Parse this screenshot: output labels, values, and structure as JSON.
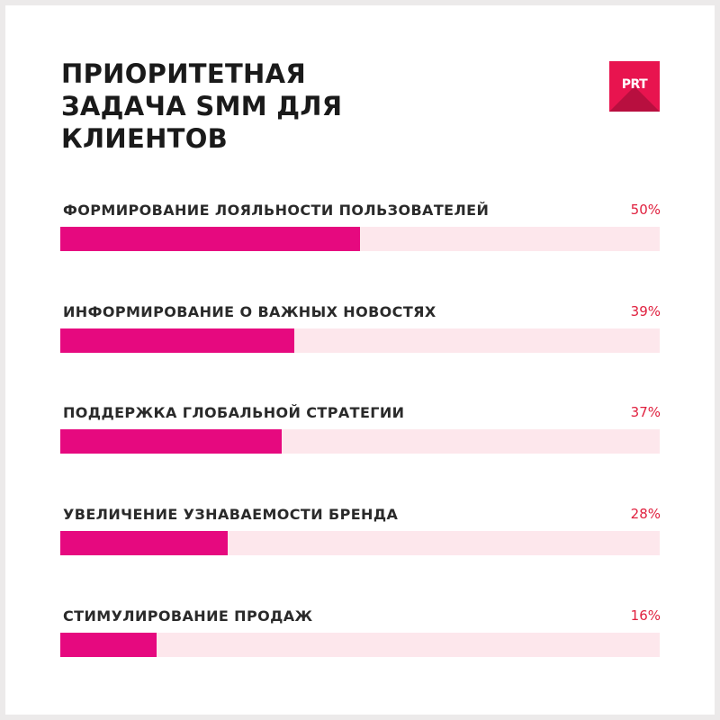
{
  "title_lines": [
    "ПРИОРИТЕТНАЯ",
    "ЗАДАЧА SMM ДЛЯ",
    "КЛИЕНТОВ"
  ],
  "logo": {
    "text": "PRT",
    "color": "#e8144f"
  },
  "colors": {
    "bar_fill": "#e6097f",
    "bar_track": "#fde7ec",
    "value_text": "#e0213f"
  },
  "chart_data": {
    "type": "bar",
    "orientation": "horizontal",
    "title": "ПРИОРИТЕТНАЯ ЗАДАЧА SMM ДЛЯ КЛИЕНТОВ",
    "categories": [
      "ФОРМИРОВАНИЕ ЛОЯЛЬНОСТИ ПОЛЬЗОВАТЕЛЕЙ",
      "ИНФОРМИРОВАНИЕ О ВАЖНЫХ НОВОСТЯХ",
      "ПОДДЕРЖКА ГЛОБАЛЬНОЙ СТРАТЕГИИ",
      "УВЕЛИЧЕНИЕ УЗНАВАЕМОСТИ БРЕНДА",
      "СТИМУЛИРОВАНИЕ ПРОДАЖ"
    ],
    "values": [
      50,
      39,
      37,
      28,
      16
    ],
    "value_labels": [
      "50%",
      "39%",
      "37%",
      "28%",
      "16%"
    ],
    "xlim": [
      0,
      100
    ],
    "grid": false
  }
}
